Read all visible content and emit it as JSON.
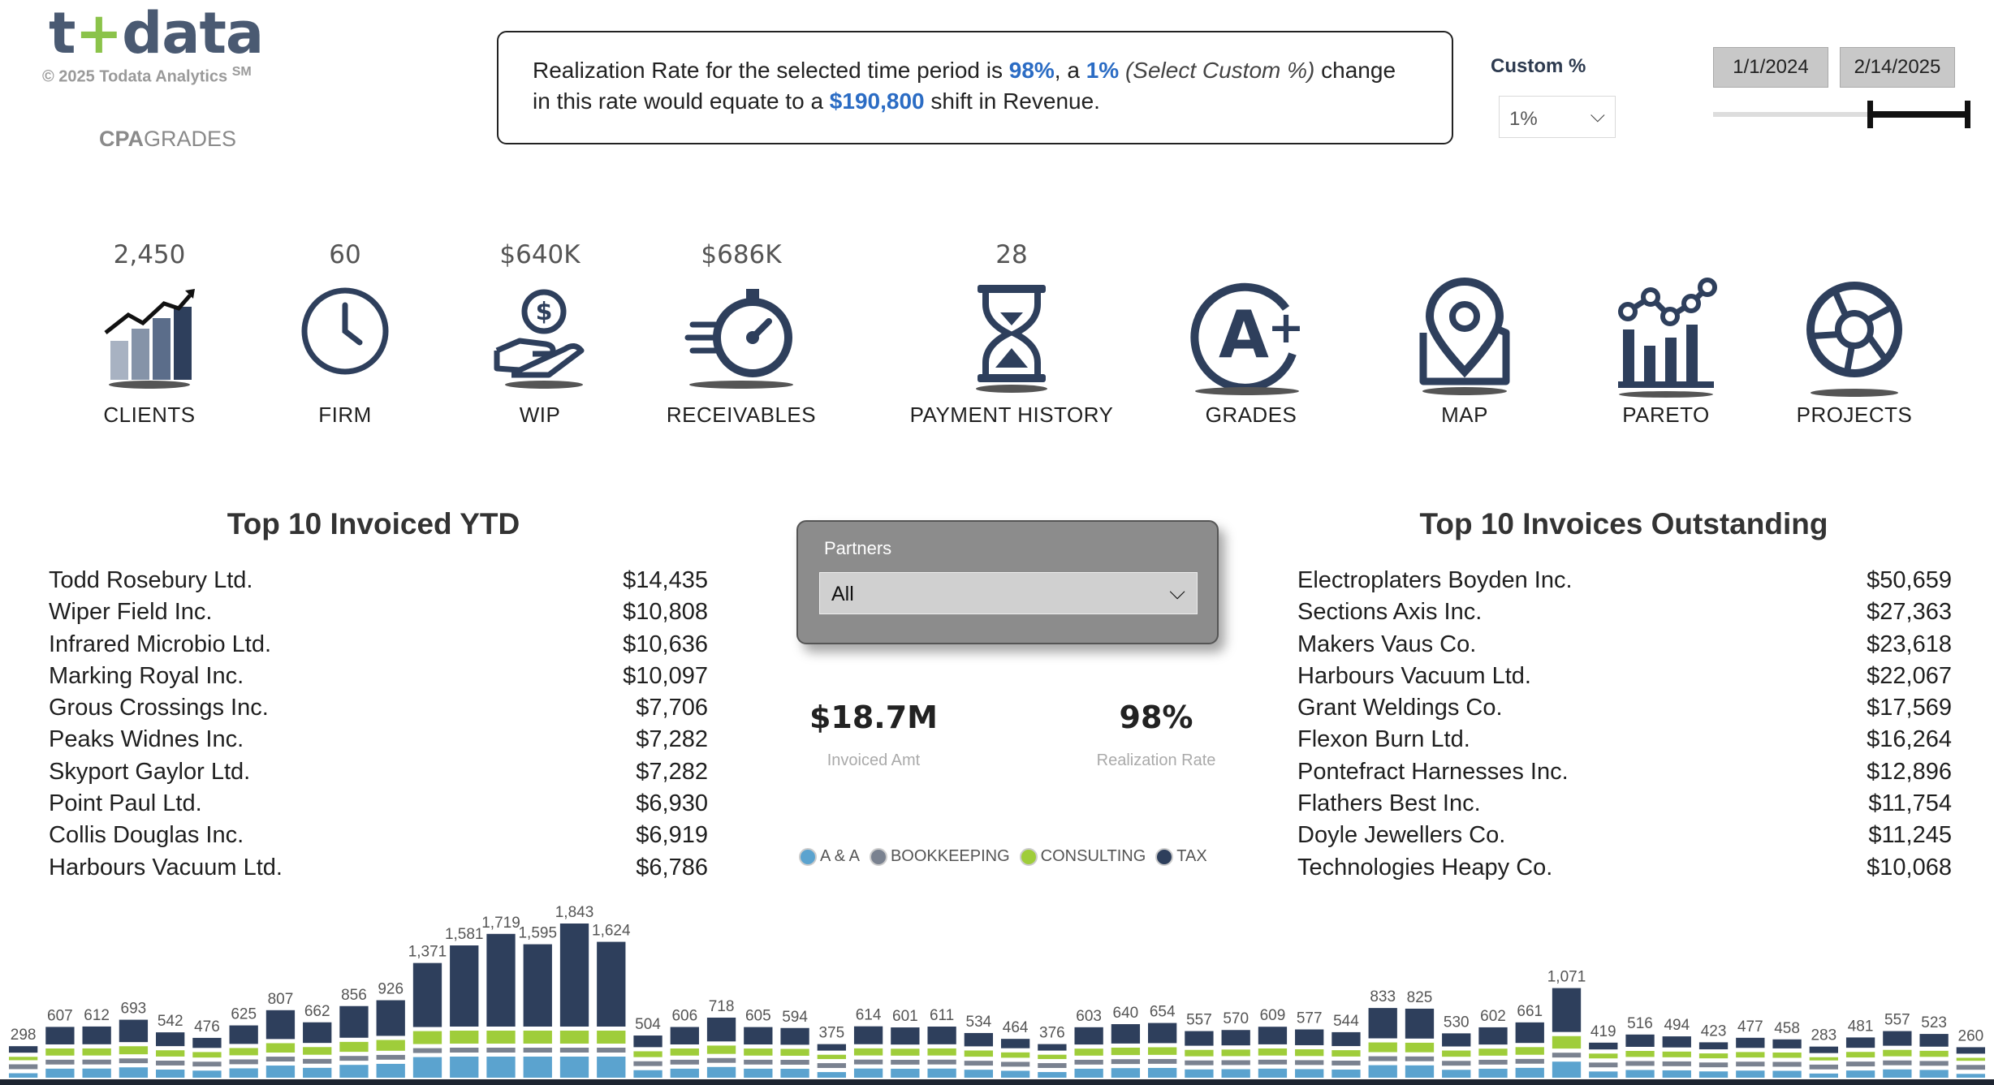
{
  "brand": {
    "logo_pre": "t",
    "logo_plus": "+",
    "logo_post": "data",
    "copyright": "© 2025 Todata Analytics",
    "sm": "SM",
    "cpa_bold": "CPA",
    "cpa_light": "GRADES"
  },
  "message": {
    "prefix": "Realization Rate for the selected time period is",
    "rate": "98%",
    "mid": ", a",
    "pct": "1%",
    "custom": "(Select Custom %)",
    "suffix": "change in this rate would equate to a",
    "amount": "$190,800",
    "end": "shift in Revenue."
  },
  "custom": {
    "label": "Custom %",
    "selected": "1%"
  },
  "dates": {
    "start": "1/1/2024",
    "end": "2/14/2025"
  },
  "kpis": [
    {
      "value": "2,450",
      "label": "CLIENTS",
      "icon": "chart-up-icon"
    },
    {
      "value": "60",
      "label": "FIRM",
      "icon": "clock-icon"
    },
    {
      "value": "$640K",
      "label": "WIP",
      "icon": "hand-coin-icon"
    },
    {
      "value": "$686K",
      "label": "RECEIVABLES",
      "icon": "stopwatch-icon"
    },
    {
      "value": "28",
      "label": "PAYMENT HISTORY",
      "icon": "hourglass-icon"
    },
    {
      "value": "",
      "label": "GRADES",
      "icon": "grade-a-plus-icon"
    },
    {
      "value": "",
      "label": "MAP",
      "icon": "map-pin-icon"
    },
    {
      "value": "",
      "label": "PARETO",
      "icon": "pareto-icon"
    },
    {
      "value": "",
      "label": "PROJECTS",
      "icon": "aperture-icon"
    }
  ],
  "invoiced": {
    "title": "Top 10 Invoiced YTD",
    "rows": [
      {
        "name": "Todd Rosebury Ltd.",
        "amount": "$14,435"
      },
      {
        "name": "Wiper Field Inc.",
        "amount": "$10,808"
      },
      {
        "name": "Infrared Microbio Ltd.",
        "amount": "$10,636"
      },
      {
        "name": "Marking Royal Inc.",
        "amount": "$10,097"
      },
      {
        "name": "Grous Crossings Inc.",
        "amount": "$7,706"
      },
      {
        "name": "Peaks Widnes Inc.",
        "amount": "$7,282"
      },
      {
        "name": "Skyport Gaylor Ltd.",
        "amount": "$7,282"
      },
      {
        "name": "Point Paul Ltd.",
        "amount": "$6,930"
      },
      {
        "name": "Collis Douglas Inc.",
        "amount": "$6,919"
      },
      {
        "name": "Harbours Vacuum Ltd.",
        "amount": "$6,786"
      }
    ]
  },
  "outstanding": {
    "title": "Top 10 Invoices Outstanding",
    "rows": [
      {
        "name": "Electroplaters Boyden Inc.",
        "amount": "$50,659"
      },
      {
        "name": "Sections Axis Inc.",
        "amount": "$27,363"
      },
      {
        "name": "Makers Vaus Co.",
        "amount": "$23,618"
      },
      {
        "name": "Harbours Vacuum Ltd.",
        "amount": "$22,067"
      },
      {
        "name": "Grant Weldings Co.",
        "amount": "$17,569"
      },
      {
        "name": "Flexon Burn Ltd.",
        "amount": "$16,264"
      },
      {
        "name": "Pontefract Harnesses Inc.",
        "amount": "$12,896"
      },
      {
        "name": "Flathers Best Inc.",
        "amount": "$11,754"
      },
      {
        "name": "Doyle Jewellers Co.",
        "amount": "$11,245"
      },
      {
        "name": "Technologies Heapy Co.",
        "amount": "$10,068"
      }
    ]
  },
  "partners": {
    "label": "Partners",
    "selected": "All"
  },
  "summary": {
    "invoiced_value": "$18.7M",
    "invoiced_label": "Invoiced Amt",
    "rate_value": "98%",
    "rate_label": "Realization Rate"
  },
  "legend": [
    {
      "name": "A & A",
      "color": "#5ba3cf"
    },
    {
      "name": "BOOKKEEPING",
      "color": "#7a8290"
    },
    {
      "name": "CONSULTING",
      "color": "#9fcd3a"
    },
    {
      "name": "TAX",
      "color": "#2e3f5c"
    }
  ],
  "colors": {
    "primary": "#2e3f5c",
    "accent": "#2b6cc4",
    "green": "#8bc34a"
  },
  "chart_data": {
    "type": "bar",
    "stacked": true,
    "series_names": [
      "A & A",
      "BOOKKEEPING",
      "CONSULTING",
      "TAX"
    ],
    "values": [
      298,
      607,
      612,
      693,
      542,
      476,
      625,
      807,
      662,
      856,
      926,
      1371,
      1581,
      1719,
      1595,
      1843,
      1624,
      504,
      606,
      718,
      605,
      594,
      375,
      614,
      601,
      611,
      534,
      464,
      376,
      603,
      640,
      654,
      557,
      570,
      609,
      577,
      544,
      833,
      825,
      530,
      602,
      661,
      1071,
      419,
      516,
      494,
      423,
      477,
      458,
      283,
      481,
      557,
      523,
      260
    ],
    "labels": [
      "298",
      "607",
      "612",
      "693",
      "542",
      "476",
      "625",
      "807",
      "662",
      "856",
      "926",
      "1,371",
      "1,581",
      "1,719",
      "1,595",
      "1,843",
      "1,624",
      "504",
      "606",
      "718",
      "605",
      "594",
      "375",
      "614",
      "601",
      "611",
      "534",
      "464",
      "376",
      "603",
      "640",
      "654",
      "557",
      "570",
      "609",
      "577",
      "544",
      "833",
      "825",
      "530",
      "602",
      "661",
      "1,071",
      "419",
      "516",
      "494",
      "423",
      "477",
      "458",
      "283",
      "481",
      "557",
      "523",
      "260"
    ],
    "title": "",
    "xlabel": "",
    "ylabel": ""
  }
}
